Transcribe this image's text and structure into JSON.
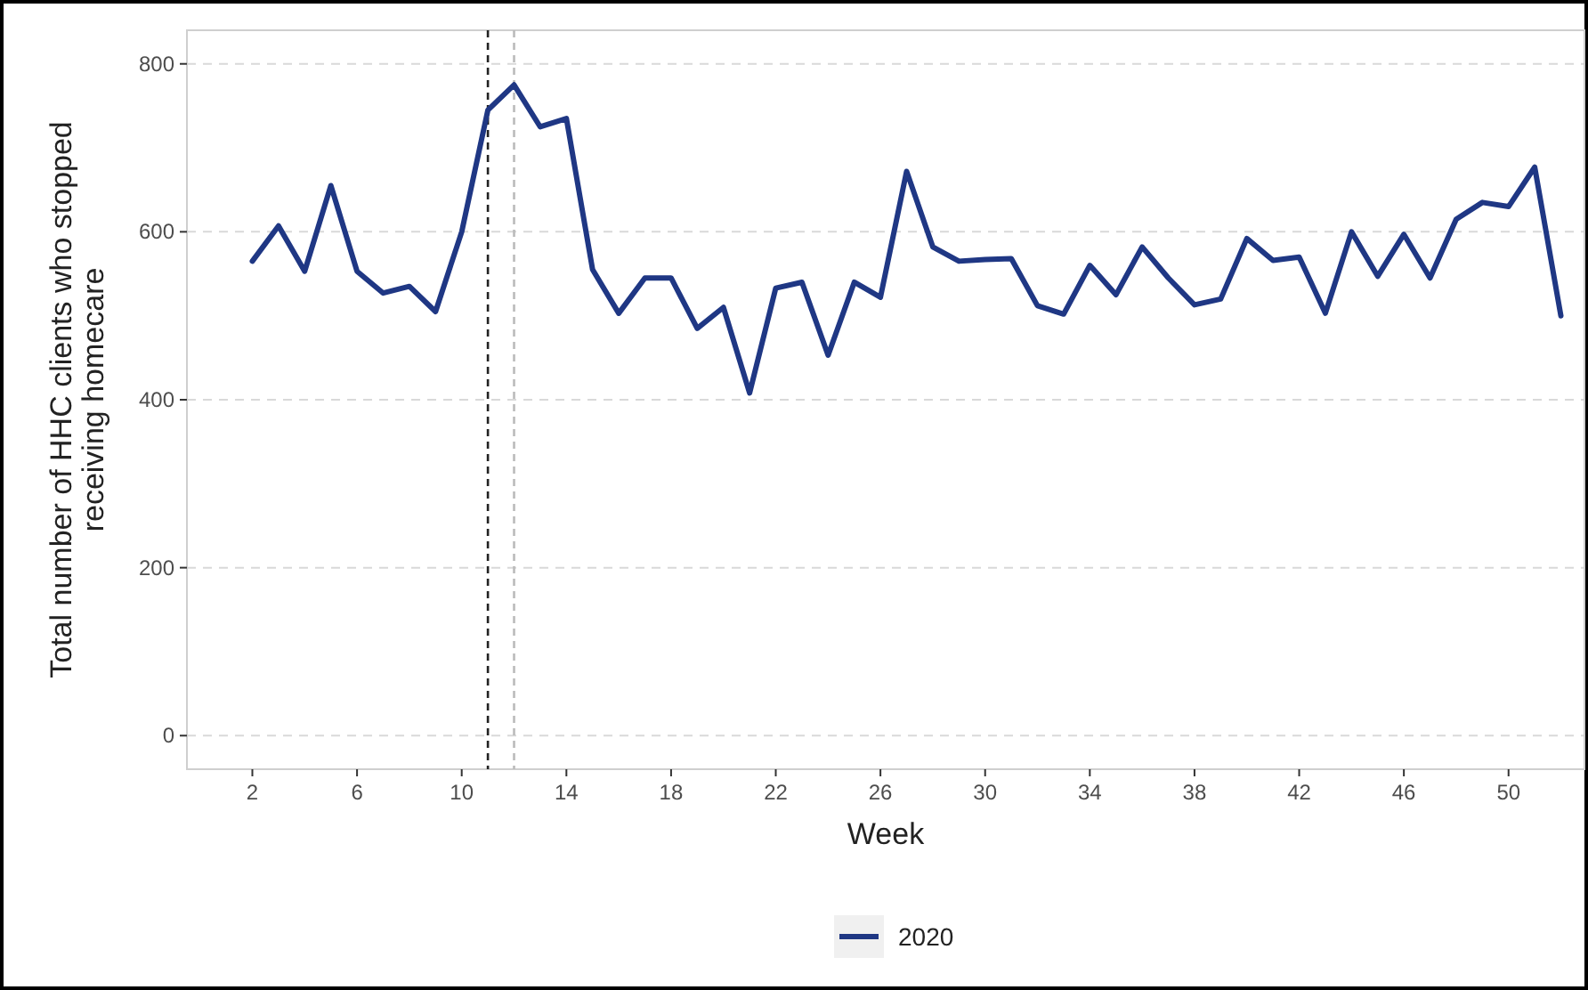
{
  "chart_data": {
    "type": "line",
    "xlabel": "Week",
    "ylabel": "Total number of HHC clients who stopped receiving homecare",
    "x": [
      2,
      3,
      4,
      5,
      6,
      7,
      8,
      9,
      10,
      11,
      12,
      13,
      14,
      15,
      16,
      17,
      18,
      19,
      20,
      21,
      22,
      23,
      24,
      25,
      26,
      27,
      28,
      29,
      30,
      31,
      32,
      33,
      34,
      35,
      36,
      37,
      38,
      39,
      40,
      41,
      42,
      43,
      44,
      45,
      46,
      47,
      48,
      49,
      50,
      51,
      52
    ],
    "series": [
      {
        "name": "2020",
        "color": "#1f3784",
        "values": [
          565,
          607,
          553,
          655,
          553,
          527,
          535,
          505,
          600,
          745,
          775,
          725,
          735,
          555,
          503,
          545,
          545,
          485,
          510,
          408,
          533,
          540,
          453,
          540,
          522,
          672,
          582,
          565,
          567,
          568,
          512,
          502,
          560,
          525,
          582,
          545,
          513,
          520,
          592,
          566,
          570,
          503,
          600,
          547,
          597,
          545,
          615,
          635,
          630,
          677,
          500
        ]
      }
    ],
    "xlim": [
      -0.5,
      52.9
    ],
    "xticks": [
      2,
      6,
      10,
      14,
      18,
      22,
      26,
      30,
      34,
      38,
      42,
      46,
      50
    ],
    "ylim": [
      -40,
      840
    ],
    "yticks": [
      0,
      200,
      400,
      600,
      800
    ],
    "grid": "y",
    "legend": "bottom",
    "line_style": "solid",
    "marker": "none",
    "ref_lines": [
      {
        "axis": "x",
        "value": 11,
        "color": "#222222",
        "line_style": "dashed"
      },
      {
        "axis": "x",
        "value": 12,
        "color": "#bbbbbb",
        "line_style": "dashed"
      }
    ]
  }
}
